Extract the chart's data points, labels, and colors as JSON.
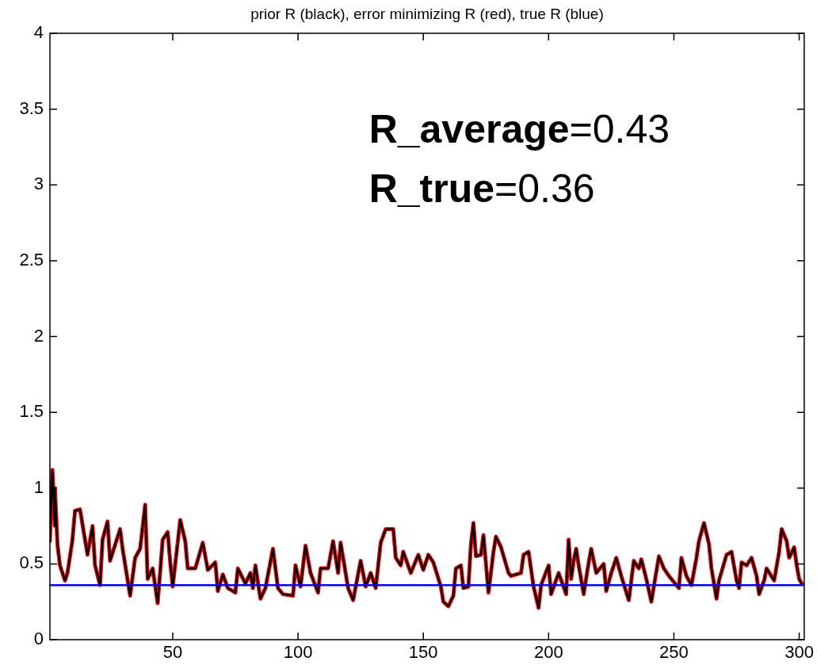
{
  "chart_data": {
    "type": "line",
    "title": "prior R (black), error minimizing R (red), true R (blue)",
    "annotations": [
      "R_average=0.43",
      "R_true=0.36"
    ],
    "xlim": [
      1,
      302
    ],
    "xticks": [
      50,
      100,
      150,
      200,
      250,
      300
    ],
    "ylim": [
      0,
      4
    ],
    "yticks": [
      0,
      0.5,
      1,
      1.5,
      2,
      2.5,
      3,
      3.5,
      4
    ],
    "grid": false,
    "legend": false,
    "marker": "none",
    "line_style": "solid",
    "series": [
      {
        "color": "#ff0000",
        "x": [
          1,
          2,
          3,
          3,
          4,
          5,
          7,
          8,
          10,
          11,
          13,
          15,
          16,
          18,
          19,
          21,
          22,
          24,
          25,
          29,
          30,
          33,
          35,
          37,
          39,
          40,
          42,
          44,
          46,
          48,
          49,
          50,
          53,
          55,
          56,
          59,
          62,
          64,
          67,
          68,
          70,
          72,
          75,
          76,
          79,
          81,
          82,
          83,
          85,
          87,
          90,
          92,
          94,
          98,
          99,
          101,
          103,
          105,
          108,
          109,
          112,
          114,
          116,
          117,
          120,
          122,
          125,
          127,
          129,
          131,
          133,
          135,
          138,
          139,
          141,
          142,
          145,
          148,
          150,
          152,
          154,
          157,
          158,
          160,
          162,
          163,
          165,
          166,
          168,
          169,
          170,
          171,
          173,
          174,
          176,
          178,
          179,
          181,
          184,
          185,
          189,
          190,
          192,
          194,
          196,
          197,
          200,
          201,
          204,
          207,
          208,
          209,
          210,
          211,
          212,
          214,
          216,
          217,
          219,
          222,
          223,
          225,
          227,
          229,
          232,
          234,
          236,
          237,
          239,
          241,
          244,
          246,
          248,
          252,
          253,
          255,
          257,
          259,
          260,
          262,
          264,
          265,
          267,
          268,
          271,
          273,
          275,
          276,
          277,
          279,
          281,
          283,
          284,
          286,
          287,
          290,
          292,
          293,
          295,
          296,
          298,
          299,
          300,
          301
        ],
        "values": [
          0.65,
          1.12,
          0.75,
          1.0,
          0.63,
          0.49,
          0.39,
          0.44,
          0.66,
          0.85,
          0.86,
          0.66,
          0.56,
          0.75,
          0.49,
          0.36,
          0.66,
          0.78,
          0.52,
          0.73,
          0.6,
          0.29,
          0.54,
          0.6,
          0.89,
          0.4,
          0.47,
          0.24,
          0.66,
          0.71,
          0.51,
          0.35,
          0.79,
          0.65,
          0.47,
          0.47,
          0.64,
          0.46,
          0.51,
          0.32,
          0.43,
          0.34,
          0.31,
          0.47,
          0.37,
          0.44,
          0.34,
          0.49,
          0.27,
          0.34,
          0.6,
          0.34,
          0.3,
          0.29,
          0.49,
          0.35,
          0.62,
          0.44,
          0.31,
          0.47,
          0.47,
          0.65,
          0.44,
          0.64,
          0.34,
          0.26,
          0.52,
          0.35,
          0.44,
          0.34,
          0.64,
          0.73,
          0.73,
          0.54,
          0.49,
          0.58,
          0.44,
          0.56,
          0.46,
          0.56,
          0.51,
          0.35,
          0.25,
          0.22,
          0.29,
          0.47,
          0.49,
          0.34,
          0.35,
          0.63,
          0.77,
          0.55,
          0.56,
          0.69,
          0.31,
          0.58,
          0.68,
          0.61,
          0.44,
          0.42,
          0.44,
          0.56,
          0.58,
          0.35,
          0.21,
          0.36,
          0.49,
          0.3,
          0.44,
          0.3,
          0.66,
          0.4,
          0.52,
          0.6,
          0.49,
          0.3,
          0.51,
          0.6,
          0.44,
          0.5,
          0.32,
          0.44,
          0.54,
          0.42,
          0.26,
          0.52,
          0.47,
          0.53,
          0.4,
          0.25,
          0.55,
          0.47,
          0.42,
          0.34,
          0.54,
          0.42,
          0.36,
          0.54,
          0.65,
          0.77,
          0.63,
          0.47,
          0.27,
          0.39,
          0.56,
          0.58,
          0.39,
          0.34,
          0.51,
          0.49,
          0.54,
          0.42,
          0.3,
          0.39,
          0.47,
          0.39,
          0.58,
          0.73,
          0.65,
          0.54,
          0.61,
          0.49,
          0.4,
          0.37
        ]
      },
      {
        "color": "#000000",
        "x": [
          1,
          2,
          3,
          3,
          4,
          5,
          7,
          8,
          10,
          11,
          13,
          15,
          16,
          18,
          19,
          21,
          22,
          24,
          25,
          29,
          30,
          33,
          35,
          37,
          39,
          40,
          42,
          44,
          46,
          48,
          49,
          50,
          53,
          55,
          56,
          59,
          62,
          64,
          67,
          68,
          70,
          72,
          75,
          76,
          79,
          81,
          82,
          83,
          85,
          87,
          90,
          92,
          94,
          98,
          99,
          101,
          103,
          105,
          108,
          109,
          112,
          114,
          116,
          117,
          120,
          122,
          125,
          127,
          129,
          131,
          133,
          135,
          138,
          139,
          141,
          142,
          145,
          148,
          150,
          152,
          154,
          157,
          158,
          160,
          162,
          163,
          165,
          166,
          168,
          169,
          170,
          171,
          173,
          174,
          176,
          178,
          179,
          181,
          184,
          185,
          189,
          190,
          192,
          194,
          196,
          197,
          200,
          201,
          204,
          207,
          208,
          209,
          210,
          211,
          212,
          214,
          216,
          217,
          219,
          222,
          223,
          225,
          227,
          229,
          232,
          234,
          236,
          237,
          239,
          241,
          244,
          246,
          248,
          252,
          253,
          255,
          257,
          259,
          260,
          262,
          264,
          265,
          267,
          268,
          271,
          273,
          275,
          276,
          277,
          279,
          281,
          283,
          284,
          286,
          287,
          290,
          292,
          293,
          295,
          296,
          298,
          299,
          300,
          301
        ],
        "values": [
          0.65,
          1.12,
          0.75,
          1.0,
          0.63,
          0.49,
          0.39,
          0.44,
          0.66,
          0.85,
          0.86,
          0.66,
          0.56,
          0.75,
          0.49,
          0.36,
          0.66,
          0.78,
          0.52,
          0.73,
          0.6,
          0.29,
          0.54,
          0.6,
          0.89,
          0.4,
          0.47,
          0.24,
          0.66,
          0.71,
          0.51,
          0.35,
          0.79,
          0.65,
          0.47,
          0.47,
          0.64,
          0.46,
          0.51,
          0.32,
          0.43,
          0.34,
          0.31,
          0.47,
          0.37,
          0.44,
          0.34,
          0.49,
          0.27,
          0.34,
          0.6,
          0.34,
          0.3,
          0.29,
          0.49,
          0.35,
          0.62,
          0.44,
          0.31,
          0.47,
          0.47,
          0.65,
          0.44,
          0.64,
          0.34,
          0.26,
          0.52,
          0.35,
          0.44,
          0.34,
          0.64,
          0.73,
          0.73,
          0.54,
          0.49,
          0.58,
          0.44,
          0.56,
          0.46,
          0.56,
          0.51,
          0.35,
          0.25,
          0.22,
          0.29,
          0.47,
          0.49,
          0.34,
          0.35,
          0.63,
          0.77,
          0.55,
          0.56,
          0.69,
          0.31,
          0.58,
          0.68,
          0.61,
          0.44,
          0.42,
          0.44,
          0.56,
          0.58,
          0.35,
          0.21,
          0.36,
          0.49,
          0.3,
          0.44,
          0.3,
          0.66,
          0.4,
          0.52,
          0.6,
          0.49,
          0.3,
          0.51,
          0.6,
          0.44,
          0.5,
          0.32,
          0.44,
          0.54,
          0.42,
          0.26,
          0.52,
          0.47,
          0.53,
          0.4,
          0.25,
          0.55,
          0.47,
          0.42,
          0.34,
          0.54,
          0.42,
          0.36,
          0.54,
          0.65,
          0.77,
          0.63,
          0.47,
          0.27,
          0.39,
          0.56,
          0.58,
          0.39,
          0.34,
          0.51,
          0.49,
          0.54,
          0.42,
          0.3,
          0.39,
          0.47,
          0.39,
          0.58,
          0.73,
          0.65,
          0.54,
          0.61,
          0.49,
          0.4,
          0.37
        ]
      },
      {
        "color": "#0000ff",
        "x": [
          1,
          302
        ],
        "values": [
          0.36,
          0.36
        ]
      }
    ]
  }
}
